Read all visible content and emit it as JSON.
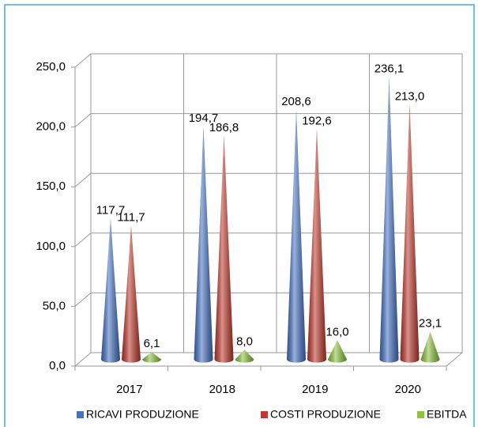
{
  "chart_data": {
    "type": "cone-bar",
    "categories": [
      "2017",
      "2018",
      "2019",
      "2020"
    ],
    "series": [
      {
        "name": "RICAVI PRODUZIONE",
        "color": "#4472c4",
        "values": [
          117.7,
          194.7,
          208.6,
          236.1
        ],
        "value_labels": [
          "117,7",
          "194,7",
          "208,6",
          "236,1"
        ]
      },
      {
        "name": "COSTI PRODUZIONE",
        "color": "#c0392b",
        "values": [
          111.7,
          186.8,
          192.6,
          213.0
        ],
        "value_labels": [
          "111,7",
          "186,8",
          "192,6",
          "213,0"
        ]
      },
      {
        "name": "EBITDA",
        "color": "#8cc43c",
        "values": [
          6.1,
          8.0,
          16.0,
          23.1
        ],
        "value_labels": [
          "6,1",
          "8,0",
          "16,0",
          "23,1"
        ]
      }
    ],
    "ylim": [
      0,
      250
    ],
    "yticks": [
      {
        "value": 0,
        "label": "0,0"
      },
      {
        "value": 50,
        "label": "50,0"
      },
      {
        "value": 100,
        "label": "100,0"
      },
      {
        "value": 150,
        "label": "150,0"
      },
      {
        "value": 200,
        "label": "200,0"
      },
      {
        "value": 250,
        "label": "250,0"
      }
    ],
    "grid": true,
    "legend": "bottom"
  }
}
